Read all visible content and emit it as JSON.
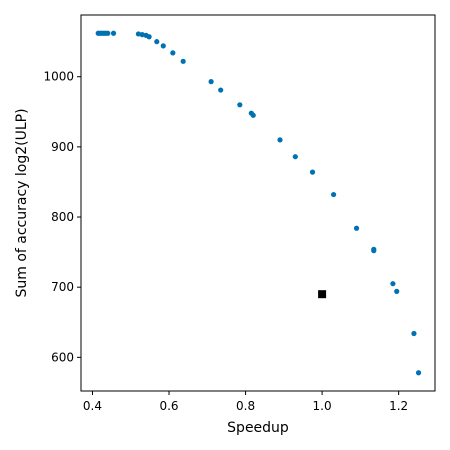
{
  "chart_data": {
    "type": "scatter",
    "xlabel": "Speedup",
    "ylabel": "Sum of accuracy log2(ULP)",
    "xlim": [
      0.37,
      1.295
    ],
    "ylim": [
      552,
      1088
    ],
    "xticks": [
      {
        "value": 0.4,
        "label": "0.4"
      },
      {
        "value": 0.6,
        "label": "0.6"
      },
      {
        "value": 0.8,
        "label": "0.8"
      },
      {
        "value": 1.0,
        "label": "1.0"
      },
      {
        "value": 1.2,
        "label": "1.2"
      }
    ],
    "yticks": [
      {
        "value": 600,
        "label": "600"
      },
      {
        "value": 700,
        "label": "700"
      },
      {
        "value": 800,
        "label": "800"
      },
      {
        "value": 900,
        "label": "900"
      },
      {
        "value": 1000,
        "label": "1000"
      }
    ],
    "grid": false,
    "series": [
      {
        "marker": "circle",
        "color": "#0072b2",
        "points": [
          [
            0.415,
            1062
          ],
          [
            0.42,
            1062
          ],
          [
            0.425,
            1062
          ],
          [
            0.43,
            1062
          ],
          [
            0.435,
            1062
          ],
          [
            0.44,
            1062
          ],
          [
            0.455,
            1062
          ],
          [
            0.52,
            1061
          ],
          [
            0.53,
            1060
          ],
          [
            0.54,
            1059
          ],
          [
            0.548,
            1057
          ],
          [
            0.568,
            1050
          ],
          [
            0.585,
            1044
          ],
          [
            0.61,
            1034
          ],
          [
            0.637,
            1022
          ],
          [
            0.71,
            993
          ],
          [
            0.735,
            981
          ],
          [
            0.785,
            960
          ],
          [
            0.815,
            948
          ],
          [
            0.82,
            945
          ],
          [
            0.89,
            910
          ],
          [
            0.93,
            886
          ],
          [
            0.975,
            864
          ],
          [
            1.03,
            832
          ],
          [
            1.09,
            784
          ],
          [
            1.135,
            752
          ],
          [
            1.135,
            754
          ],
          [
            1.185,
            705
          ],
          [
            1.195,
            694
          ],
          [
            1.24,
            634
          ],
          [
            1.252,
            578
          ]
        ]
      },
      {
        "marker": "square",
        "color": "#000000",
        "points": [
          [
            1.0,
            690
          ]
        ]
      }
    ]
  }
}
